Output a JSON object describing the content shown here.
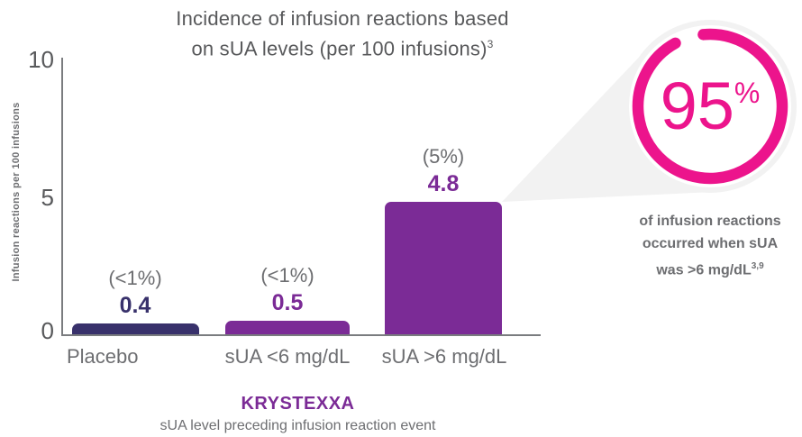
{
  "title": {
    "line1": "Incidence of infusion reactions based",
    "line2": "on sUA levels (per 100 infusions)",
    "sup": "3"
  },
  "chart_data": {
    "type": "bar",
    "title": "Incidence of infusion reactions based on sUA levels (per 100 infusions)3",
    "categories": [
      "Placebo",
      "sUA <6 mg/dL",
      "sUA >6 mg/dL"
    ],
    "values": [
      0.4,
      0.5,
      4.8
    ],
    "value_labels": [
      "0.4",
      "0.5",
      "4.8"
    ],
    "percent_labels": [
      "(<1%)",
      "(<1%)",
      "(5%)"
    ],
    "bar_colors": [
      "#38316b",
      "#7b2b96",
      "#7b2b96"
    ],
    "ylabel": "Infusion reactions per 100 infusions",
    "xlabel": "sUA level preceding infusion reaction event",
    "ylim": [
      0,
      10
    ],
    "yticks": [
      "10",
      "5",
      "0"
    ],
    "grid": false,
    "legend": false
  },
  "callout": {
    "value": "95",
    "unit": "%",
    "line1": "of infusion reactions",
    "line2": "occurred when sUA",
    "line3": "was >6 mg/dL",
    "sup": "3,9",
    "ring_color": "#ec148c"
  },
  "footer": {
    "brand": "KRYSTEXXA",
    "caption": "sUA level preceding infusion reaction event"
  },
  "colors": {
    "navy": "#38316b",
    "purple": "#7b2b96",
    "pink": "#ec148c",
    "gray_text": "#6d6e71",
    "dark_text": "#58595b",
    "axis": "#7a7c7f",
    "wedge": "#f2f2f2"
  }
}
